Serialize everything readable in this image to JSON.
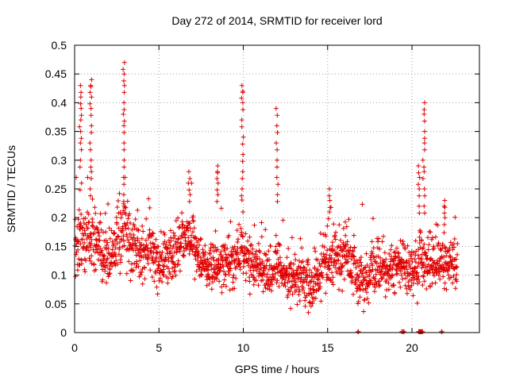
{
  "chart_data": {
    "type": "scatter",
    "title": "Day 272 of 2014, SRMTID for receiver lord",
    "xlabel": "GPS time / hours",
    "ylabel": "SRMTID / TECUs",
    "xlim": [
      0,
      24
    ],
    "ylim": [
      0,
      0.5
    ],
    "xticks": [
      0,
      5,
      10,
      15,
      20
    ],
    "xtick_labels": [
      "0",
      "5",
      "10",
      "15",
      "20"
    ],
    "yticks": [
      0,
      0.05,
      0.1,
      0.15,
      0.2,
      0.25,
      0.3,
      0.35,
      0.4,
      0.45,
      0.5
    ],
    "ytick_labels": [
      "0",
      "0.05",
      "0.1",
      "0.15",
      "0.2",
      "0.25",
      "0.3",
      "0.35",
      "0.4",
      "0.45",
      "0.5"
    ],
    "grid": true,
    "marker": "+",
    "color": "#e00000",
    "legend": "none",
    "series": [
      {
        "name": "SRMTID",
        "note": "dense point cloud 0 to 22.7 h; baseline values approximated from the figure",
        "envelope": {
          "x": [
            0,
            0.5,
            1.0,
            1.5,
            2.0,
            2.5,
            3.0,
            3.5,
            4.0,
            4.5,
            5.0,
            5.5,
            6.0,
            6.5,
            7.0,
            7.5,
            8.0,
            8.5,
            9.0,
            9.5,
            10.0,
            10.5,
            11.0,
            11.5,
            12.0,
            12.5,
            13.0,
            13.5,
            14.0,
            14.5,
            15.0,
            15.5,
            16.0,
            16.5,
            17.0,
            17.5,
            18.0,
            18.5,
            19.0,
            19.5,
            20.0,
            20.5,
            21.0,
            21.5,
            22.0,
            22.5
          ],
          "y_typical": [
            0.15,
            0.16,
            0.17,
            0.14,
            0.13,
            0.16,
            0.18,
            0.14,
            0.13,
            0.15,
            0.12,
            0.13,
            0.14,
            0.17,
            0.16,
            0.12,
            0.11,
            0.12,
            0.11,
            0.13,
            0.15,
            0.11,
            0.12,
            0.1,
            0.12,
            0.1,
            0.09,
            0.1,
            0.07,
            0.1,
            0.13,
            0.13,
            0.14,
            0.11,
            0.09,
            0.1,
            0.12,
            0.1,
            0.11,
            0.12,
            0.1,
            0.13,
            0.12,
            0.11,
            0.12,
            0.12
          ],
          "y_spread": [
            0.05,
            0.06,
            0.06,
            0.05,
            0.05,
            0.05,
            0.06,
            0.05,
            0.05,
            0.05,
            0.04,
            0.04,
            0.05,
            0.05,
            0.05,
            0.04,
            0.04,
            0.04,
            0.04,
            0.04,
            0.05,
            0.04,
            0.04,
            0.04,
            0.04,
            0.04,
            0.03,
            0.04,
            0.03,
            0.04,
            0.05,
            0.05,
            0.05,
            0.04,
            0.04,
            0.04,
            0.05,
            0.04,
            0.04,
            0.04,
            0.04,
            0.05,
            0.04,
            0.04,
            0.04,
            0.04
          ]
        },
        "spikes": [
          {
            "x": 0.35,
            "y": [
              0.26,
              0.3,
              0.33,
              0.35,
              0.37,
              0.39,
              0.41,
              0.43
            ]
          },
          {
            "x": 0.95,
            "y": [
              0.25,
              0.28,
              0.3,
              0.33,
              0.36,
              0.39,
              0.41,
              0.43,
              0.44
            ]
          },
          {
            "x": 2.9,
            "y": [
              0.24,
              0.27,
              0.3,
              0.33,
              0.36,
              0.38,
              0.4,
              0.43,
              0.45,
              0.47
            ]
          },
          {
            "x": 6.8,
            "y": [
              0.24,
              0.26,
              0.28
            ]
          },
          {
            "x": 8.5,
            "y": [
              0.24,
              0.26,
              0.28,
              0.29
            ]
          },
          {
            "x": 9.95,
            "y": [
              0.25,
              0.28,
              0.31,
              0.34,
              0.37,
              0.4,
              0.42,
              0.43
            ]
          },
          {
            "x": 12.0,
            "y": [
              0.24,
              0.27,
              0.3,
              0.33,
              0.36,
              0.39
            ]
          },
          {
            "x": 15.1,
            "y": [
              0.21,
              0.23,
              0.25
            ]
          },
          {
            "x": 20.4,
            "y": [
              0.22,
              0.25,
              0.27,
              0.29
            ]
          },
          {
            "x": 20.7,
            "y": [
              0.22,
              0.25,
              0.28,
              0.3,
              0.33,
              0.35,
              0.38,
              0.4
            ]
          },
          {
            "x": 21.9,
            "y": [
              0.2,
              0.22,
              0.23
            ]
          }
        ],
        "zero_values_x": [
          16.8,
          19.4,
          19.5,
          20.4,
          20.45,
          20.5,
          20.55,
          20.6,
          21.75
        ]
      }
    ]
  }
}
